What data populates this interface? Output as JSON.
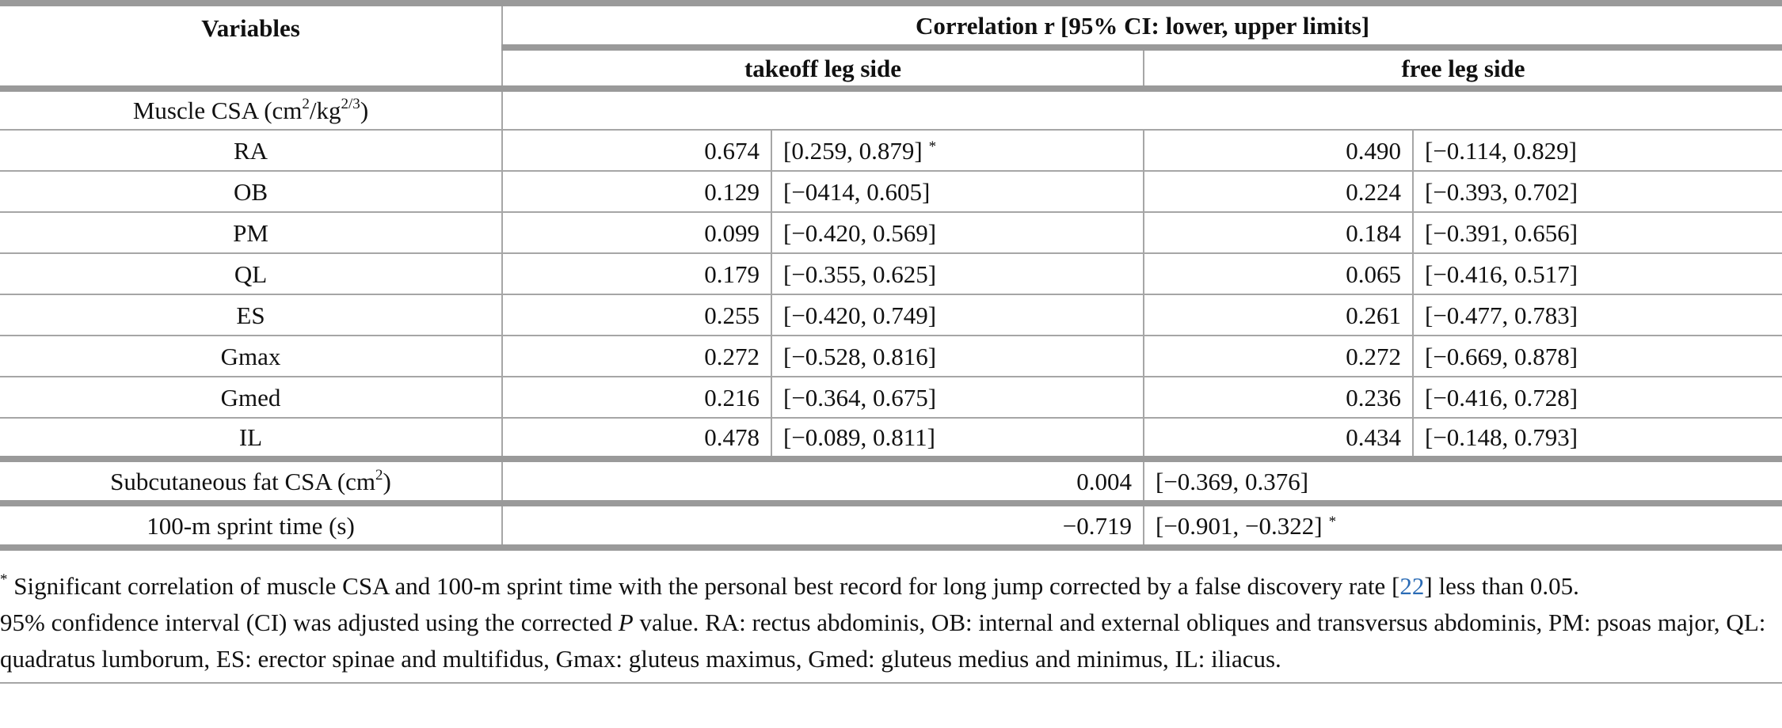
{
  "table": {
    "header": {
      "variables": "Variables",
      "correlation": "Correlation r [95% CI: lower, upper limits]",
      "takeoff": "takeoff leg side",
      "free": "free leg side"
    },
    "section": [
      "Muscle CSA (cm",
      "2",
      "/kg",
      "2/3",
      ")"
    ],
    "rows": [
      {
        "label": "RA",
        "takeoff_r": "0.674",
        "takeoff_ci": "[0.259, 0.879]",
        "mark": "*",
        "free_r": "0.490",
        "free_ci": "[−0.114, 0.829]"
      },
      {
        "label": "OB",
        "takeoff_r": "0.129",
        "takeoff_ci": "[−0414, 0.605]",
        "free_r": "0.224",
        "free_ci": "[−0.393, 0.702]"
      },
      {
        "label": "PM",
        "takeoff_r": "0.099",
        "takeoff_ci": "[−0.420, 0.569]",
        "free_r": "0.184",
        "free_ci": "[−0.391, 0.656]"
      },
      {
        "label": "QL",
        "takeoff_r": "0.179",
        "takeoff_ci": "[−0.355, 0.625]",
        "free_r": "0.065",
        "free_ci": "[−0.416, 0.517]"
      },
      {
        "label": "ES",
        "takeoff_r": "0.255",
        "takeoff_ci": "[−0.420, 0.749]",
        "free_r": "0.261",
        "free_ci": "[−0.477, 0.783]"
      },
      {
        "label": "Gmax",
        "takeoff_r": "0.272",
        "takeoff_ci": "[−0.528, 0.816]",
        "free_r": "0.272",
        "free_ci": "[−0.669, 0.878]"
      },
      {
        "label": "Gmed",
        "takeoff_r": "0.216",
        "takeoff_ci": "[−0.364, 0.675]",
        "free_r": "0.236",
        "free_ci": "[−0.416, 0.728]"
      },
      {
        "label": "IL",
        "takeoff_r": "0.478",
        "takeoff_ci": "[−0.089, 0.811]",
        "free_r": "0.434",
        "free_ci": "[−0.148, 0.793]"
      }
    ],
    "totals": [
      {
        "label": [
          "Subcutaneous fat CSA (cm",
          "2",
          ")"
        ],
        "r": "0.004",
        "ci": "[−0.369, 0.376]"
      },
      {
        "label": [
          "100-m sprint time (s)"
        ],
        "r": "−0.719",
        "ci": "[−0.901, −0.322]",
        "mark": "*"
      }
    ]
  },
  "footnotes": [
    [
      "*",
      "Significant correlation of muscle CSA and 100-m sprint time with the personal best record for long jump corrected by a false discovery rate [",
      "22",
      "] less than 0.05."
    ],
    [
      "95% confidence interval (CI) was adjusted using the corrected ",
      "P",
      " value. RA: rectus abdominis, OB: internal and external obliques and transversus abdominis, PM: psoas major, QL: quadratus lumborum, ES: erector spinae and multifidus, Gmax: gluteus maximus, Gmed: gluteus medius and minimus, IL: iliacus."
    ]
  ]
}
